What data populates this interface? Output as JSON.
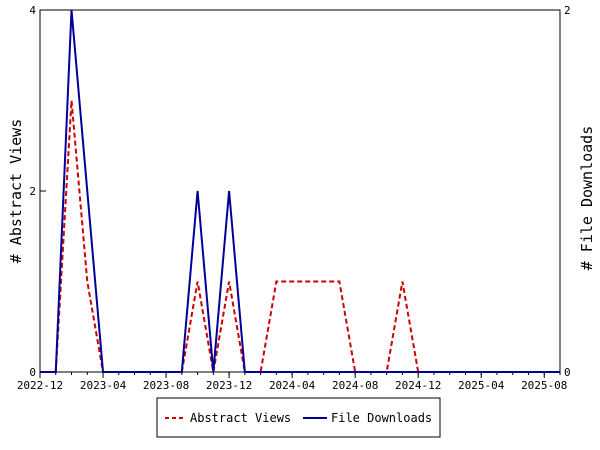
{
  "chart_data": {
    "type": "line",
    "x_ticks": [
      "2022-12",
      "2023-04",
      "2023-08",
      "2023-12",
      "2024-04",
      "2024-08",
      "2024-12",
      "2025-04",
      "2025-08"
    ],
    "x_range": [
      "2022-12",
      "2025-09"
    ],
    "y_left": {
      "label": "# Abstract Views",
      "ticks": [
        0,
        2,
        4
      ],
      "range": [
        0,
        4
      ]
    },
    "y_right": {
      "label": "# File Downloads",
      "ticks": [
        0,
        2
      ],
      "range": [
        0,
        2
      ]
    },
    "grid": false,
    "legend_position": "bottom",
    "series": [
      {
        "name": "Abstract Views",
        "axis": "left",
        "color": "#cc0000",
        "dash": "dashed",
        "points": [
          [
            "2022-12",
            0
          ],
          [
            "2023-01",
            0
          ],
          [
            "2023-02",
            3
          ],
          [
            "2023-03",
            1
          ],
          [
            "2023-04",
            0
          ],
          [
            "2023-05",
            0
          ],
          [
            "2023-06",
            0
          ],
          [
            "2023-07",
            0
          ],
          [
            "2023-08",
            0
          ],
          [
            "2023-09",
            0
          ],
          [
            "2023-10",
            1
          ],
          [
            "2023-11",
            0
          ],
          [
            "2023-12",
            1
          ],
          [
            "2024-01",
            0
          ],
          [
            "2024-02",
            0
          ],
          [
            "2024-03",
            1
          ],
          [
            "2024-04",
            1
          ],
          [
            "2024-05",
            1
          ],
          [
            "2024-06",
            1
          ],
          [
            "2024-07",
            1
          ],
          [
            "2024-08",
            0
          ],
          [
            "2024-09",
            0
          ],
          [
            "2024-10",
            0
          ],
          [
            "2024-11",
            1
          ],
          [
            "2024-12",
            0
          ],
          [
            "2025-01",
            0
          ],
          [
            "2025-02",
            0
          ],
          [
            "2025-03",
            0
          ],
          [
            "2025-04",
            0
          ],
          [
            "2025-05",
            0
          ],
          [
            "2025-06",
            0
          ],
          [
            "2025-07",
            0
          ],
          [
            "2025-08",
            0
          ],
          [
            "2025-09",
            0
          ]
        ]
      },
      {
        "name": "File Downloads",
        "axis": "right",
        "color": "#000099",
        "dash": "solid",
        "points": [
          [
            "2022-12",
            0
          ],
          [
            "2023-01",
            0
          ],
          [
            "2023-02",
            2
          ],
          [
            "2023-03",
            1
          ],
          [
            "2023-04",
            0
          ],
          [
            "2023-05",
            0
          ],
          [
            "2023-06",
            0
          ],
          [
            "2023-07",
            0
          ],
          [
            "2023-08",
            0
          ],
          [
            "2023-09",
            0
          ],
          [
            "2023-10",
            1
          ],
          [
            "2023-11",
            0
          ],
          [
            "2023-12",
            1
          ],
          [
            "2024-01",
            0
          ],
          [
            "2024-02",
            0
          ],
          [
            "2024-03",
            0
          ],
          [
            "2024-04",
            0
          ],
          [
            "2024-05",
            0
          ],
          [
            "2024-06",
            0
          ],
          [
            "2024-07",
            0
          ],
          [
            "2024-08",
            0
          ],
          [
            "2024-09",
            0
          ],
          [
            "2024-10",
            0
          ],
          [
            "2024-11",
            0
          ],
          [
            "2024-12",
            0
          ],
          [
            "2025-01",
            0
          ],
          [
            "2025-02",
            0
          ],
          [
            "2025-03",
            0
          ],
          [
            "2025-04",
            0
          ],
          [
            "2025-05",
            0
          ],
          [
            "2025-06",
            0
          ],
          [
            "2025-07",
            0
          ],
          [
            "2025-08",
            0
          ],
          [
            "2025-09",
            0
          ]
        ]
      }
    ]
  }
}
